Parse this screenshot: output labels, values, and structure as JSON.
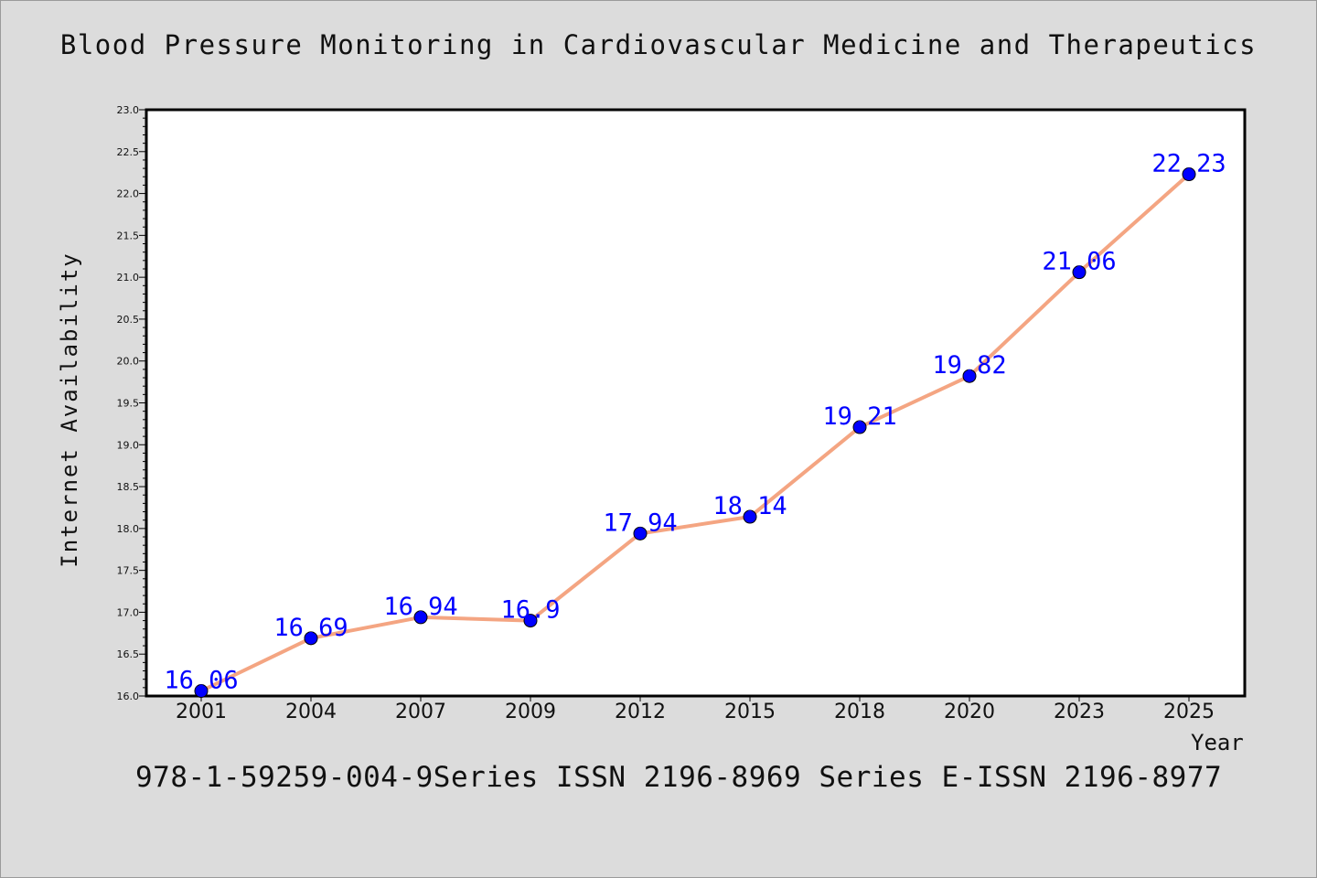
{
  "title": "Blood Pressure Monitoring in Cardiovascular Medicine and Therapeutics",
  "footer": "978-1-59259-004-9Series ISSN 2196-8969 Series E-ISSN 2196-8977",
  "colors": {
    "background": "#dcdcdc",
    "line": "#f4a582",
    "marker": "#0000ff",
    "labels": "#0000ff"
  },
  "chart_data": {
    "type": "line",
    "title": "Blood Pressure Monitoring in Cardiovascular Medicine and Therapeutics",
    "xlabel": "Year",
    "ylabel": "Internet Availability",
    "categories": [
      "2001",
      "2004",
      "2007",
      "2009",
      "2012",
      "2015",
      "2018",
      "2020",
      "2023",
      "2025"
    ],
    "series": [
      {
        "values": [
          16.06,
          16.69,
          16.94,
          16.9,
          17.94,
          18.14,
          19.21,
          19.82,
          21.06,
          22.23
        ]
      }
    ],
    "data_labels": [
      "16.06",
      "16.69",
      "16.94",
      "16.9",
      "17.94",
      "18.14",
      "19.21",
      "19.82",
      "21.06",
      "22.23"
    ],
    "ylim": [
      16.0,
      23.0
    ],
    "yticks": [
      "16.0",
      "16.5",
      "17.0",
      "17.5",
      "18.0",
      "18.5",
      "19.0",
      "19.5",
      "20.0",
      "20.5",
      "21.0",
      "21.5",
      "22.0",
      "22.5",
      "23.0"
    ],
    "grid": false,
    "legend": false
  }
}
